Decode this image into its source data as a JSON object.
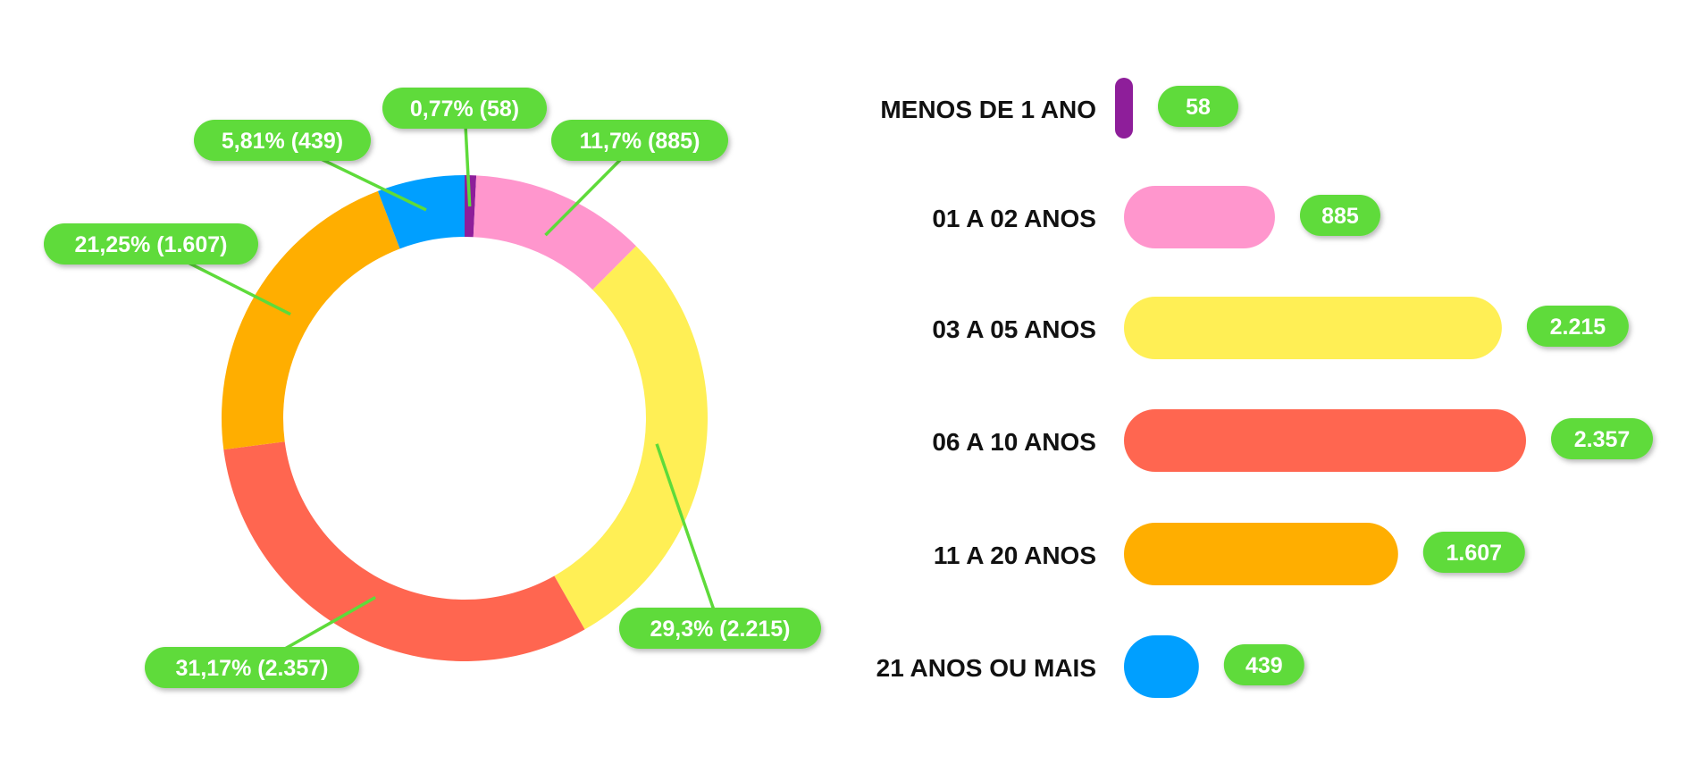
{
  "chart_data": [
    {
      "type": "pie",
      "variant": "donut",
      "slices": [
        {
          "label": "0,77% (58)",
          "value": 58,
          "percent": 0.77,
          "color": "#8E1E9A"
        },
        {
          "label": "11,7% (885)",
          "value": 885,
          "percent": 11.7,
          "color": "#FF96CD"
        },
        {
          "label": "29,3% (2.215)",
          "value": 2215,
          "percent": 29.3,
          "color": "#FFEF55"
        },
        {
          "label": "31,17% (2.357)",
          "value": 2357,
          "percent": 31.17,
          "color": "#FF6650"
        },
        {
          "label": "21,25% (1.607)",
          "value": 1607,
          "percent": 21.25,
          "color": "#FFAE00"
        },
        {
          "label": "5,81% (439)",
          "value": 439,
          "percent": 5.81,
          "color": "#009FFF"
        }
      ],
      "label_color": "#5EDB3A"
    },
    {
      "type": "bar",
      "orientation": "horizontal",
      "categories": [
        "MENOS DE 1 ANO",
        "01 A 02 ANOS",
        "03 A 05 ANOS",
        "06 A 10 ANOS",
        "11 A 20 ANOS",
        "21 ANOS OU MAIS"
      ],
      "values": [
        58,
        885,
        2215,
        2357,
        1607,
        439
      ],
      "value_labels": [
        "58",
        "885",
        "2.215",
        "2.357",
        "1.607",
        "439"
      ],
      "colors": [
        "#8E1E9A",
        "#FF96CD",
        "#FFEF55",
        "#FF6650",
        "#FFAE00",
        "#009FFF"
      ],
      "label_color": "#5EDB3A"
    }
  ]
}
